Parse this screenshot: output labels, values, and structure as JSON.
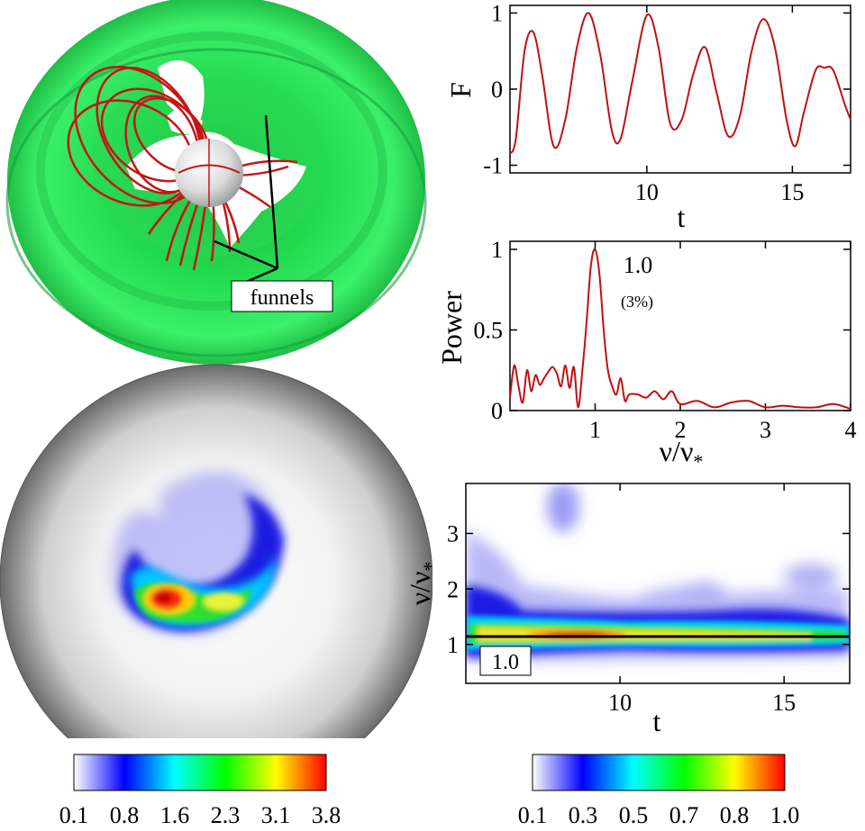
{
  "labels": {
    "funnels": "funnels",
    "peak_value": "1.0",
    "peak_pct": "(3%)",
    "band_box": "1.0"
  },
  "colorbar_left": {
    "ticks": [
      "0.1",
      "0.8",
      "1.6",
      "2.3",
      "3.1",
      "3.8"
    ],
    "colors": [
      "#ffffff",
      "#0000ff",
      "#00ffff",
      "#00ff00",
      "#ffff00",
      "#ff0000"
    ]
  },
  "colorbar_right": {
    "ticks": [
      "0.1",
      "0.3",
      "0.5",
      "0.7",
      "0.8",
      "1.0"
    ],
    "colors": [
      "#ffffff",
      "#0000ff",
      "#00ffff",
      "#00ff00",
      "#ffff00",
      "#ff0000"
    ]
  },
  "chart_data": [
    {
      "id": "flux",
      "type": "line",
      "xlabel": "t",
      "ylabel": "F",
      "xlim": [
        5.3,
        17
      ],
      "ylim": [
        -1.1,
        1.1
      ],
      "xticks": [
        10,
        15
      ],
      "yticks": [
        -1,
        0,
        1
      ],
      "ytick_labels": [
        "-1",
        "0",
        "1"
      ],
      "line_color": "#c01010",
      "x": [
        5.3,
        5.5,
        5.8,
        6.1,
        6.4,
        6.8,
        7.2,
        7.6,
        8.0,
        8.4,
        8.8,
        9.1,
        9.5,
        10.0,
        10.4,
        10.8,
        11.2,
        11.6,
        12.0,
        12.4,
        12.8,
        13.2,
        13.6,
        14.0,
        14.4,
        14.8,
        15.1,
        15.4,
        15.8,
        16.1,
        16.4,
        16.8,
        17.0
      ],
      "y": [
        -0.85,
        -0.65,
        0.5,
        0.75,
        0.2,
        -0.75,
        -0.4,
        0.55,
        1.0,
        0.45,
        -0.55,
        -0.65,
        0.1,
        0.97,
        0.55,
        -0.45,
        -0.4,
        0.2,
        0.55,
        -0.05,
        -0.62,
        -0.35,
        0.5,
        0.92,
        0.55,
        -0.4,
        -0.75,
        -0.3,
        0.25,
        0.28,
        0.25,
        -0.2,
        -0.4
      ]
    },
    {
      "id": "power",
      "type": "line",
      "xlabel": "ν/ν*",
      "ylabel": "Power",
      "xlim": [
        0,
        4
      ],
      "ylim": [
        0,
        1.05
      ],
      "xticks": [
        1,
        2,
        3,
        4
      ],
      "yticks": [
        0,
        0.5,
        1
      ],
      "ytick_labels": [
        "0",
        "0.5",
        "1"
      ],
      "line_color": "#c01010",
      "annotation": "1.0 (3%)",
      "x": [
        0.0,
        0.05,
        0.1,
        0.15,
        0.2,
        0.25,
        0.3,
        0.35,
        0.4,
        0.45,
        0.5,
        0.55,
        0.6,
        0.65,
        0.7,
        0.75,
        0.8,
        0.85,
        0.9,
        0.95,
        1.0,
        1.05,
        1.1,
        1.15,
        1.2,
        1.25,
        1.3,
        1.35,
        1.4,
        1.5,
        1.6,
        1.7,
        1.8,
        1.9,
        2.0,
        2.2,
        2.4,
        2.6,
        2.8,
        3.0,
        3.2,
        3.4,
        3.6,
        3.8,
        4.0
      ],
      "y": [
        0.08,
        0.28,
        0.15,
        0.05,
        0.25,
        0.12,
        0.22,
        0.16,
        0.2,
        0.24,
        0.27,
        0.23,
        0.15,
        0.28,
        0.14,
        0.27,
        0.02,
        0.25,
        0.55,
        0.9,
        1.0,
        0.85,
        0.5,
        0.25,
        0.15,
        0.1,
        0.2,
        0.06,
        0.1,
        0.1,
        0.08,
        0.12,
        0.07,
        0.12,
        0.04,
        0.06,
        0.02,
        0.05,
        0.06,
        0.02,
        0.03,
        0.02,
        0.02,
        0.04,
        0.01
      ]
    },
    {
      "id": "wavelet",
      "type": "heatmap",
      "xlabel": "t",
      "ylabel": "ν/ν*",
      "xlim": [
        5.3,
        17
      ],
      "ylim": [
        0.3,
        3.9
      ],
      "xticks": [
        10,
        15
      ],
      "yticks": [
        1,
        2,
        3
      ],
      "ytick_labels": [
        "1",
        "2",
        "3"
      ],
      "ridge_frequency": 1.0,
      "colorbar_range": [
        0.1,
        1.0
      ]
    }
  ]
}
